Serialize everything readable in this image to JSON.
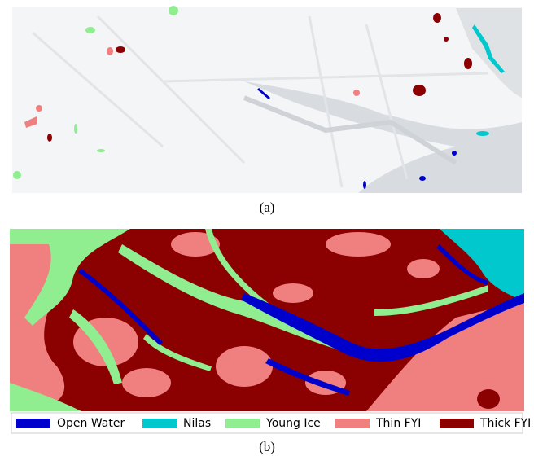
{
  "panel_a": {
    "caption": "(a)"
  },
  "panel_b": {
    "caption": "(b)",
    "legend": [
      {
        "label": "Open Water",
        "color": "#0000cd"
      },
      {
        "label": "Nilas",
        "color": "#00c8cc"
      },
      {
        "label": "Young Ice",
        "color": "#90ee90"
      },
      {
        "label": "Thin FYI",
        "color": "#f08080"
      },
      {
        "label": "Thick FYI",
        "color": "#8b0000"
      }
    ]
  }
}
